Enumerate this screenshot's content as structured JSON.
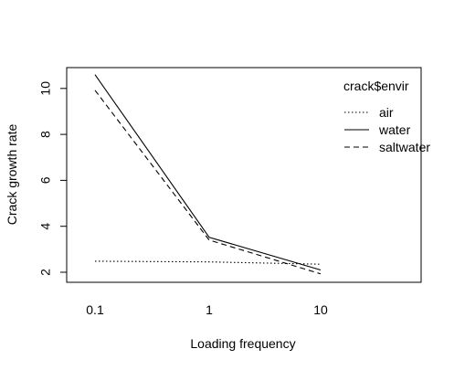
{
  "chart_data": {
    "type": "line",
    "title": "",
    "xlabel": "Loading frequency",
    "ylabel": "Crack growth rate",
    "x_scale": "categorical",
    "categories": [
      "0.1",
      "1",
      "10"
    ],
    "ylim": [
      1.5,
      11.0
    ],
    "y_ticks": [
      2,
      4,
      6,
      8,
      10
    ],
    "grid": false,
    "legend": {
      "title": "crack$envir",
      "position": "top-right"
    },
    "series": [
      {
        "name": "air",
        "values": [
          2.48,
          2.45,
          2.35
        ],
        "line_style": "dotted",
        "color": "#000000"
      },
      {
        "name": "water",
        "values": [
          10.6,
          3.52,
          2.1
        ],
        "line_style": "solid",
        "color": "#000000"
      },
      {
        "name": "saltwater",
        "values": [
          9.92,
          3.4,
          1.93
        ],
        "line_style": "dashed",
        "color": "#000000"
      }
    ]
  }
}
